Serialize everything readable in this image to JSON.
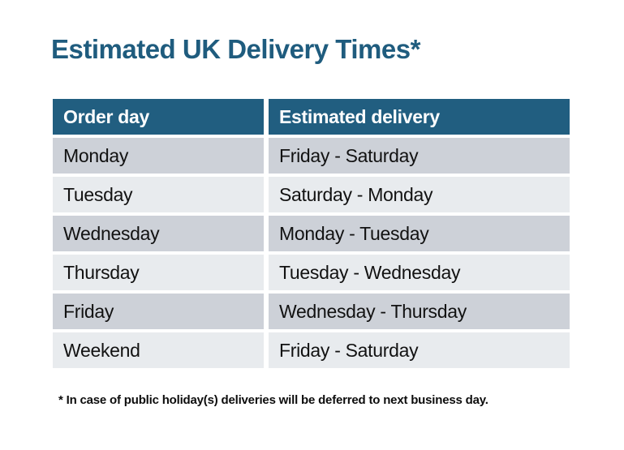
{
  "chart_data": {
    "type": "table",
    "title": "Estimated UK Delivery Times*",
    "columns": [
      "Order day",
      "Estimated delivery"
    ],
    "rows": [
      [
        "Monday",
        "Friday - Saturday"
      ],
      [
        "Tuesday",
        "Saturday - Monday"
      ],
      [
        "Wednesday",
        "Monday - Tuesday"
      ],
      [
        "Thursday",
        "Tuesday - Wednesday"
      ],
      [
        "Friday",
        "Wednesday - Thursday"
      ],
      [
        "Weekend",
        "Friday - Saturday"
      ]
    ],
    "footnote": "* In case of public holiday(s) deliveries will be deferred to next business day.",
    "layout": {
      "row_striping": "alternating, first data row dark",
      "legend": "none",
      "grid": "white gaps between cells"
    }
  },
  "colors": {
    "page_bg": "#ffffff",
    "title_color": "#1f5c7e",
    "header_bg": "#215e80",
    "header_text": "#ffffff",
    "row_dark": "#cdd1d8",
    "row_light": "#e8ebee",
    "cell_text": "#121212",
    "footnote_color": "#0d0d0d"
  }
}
